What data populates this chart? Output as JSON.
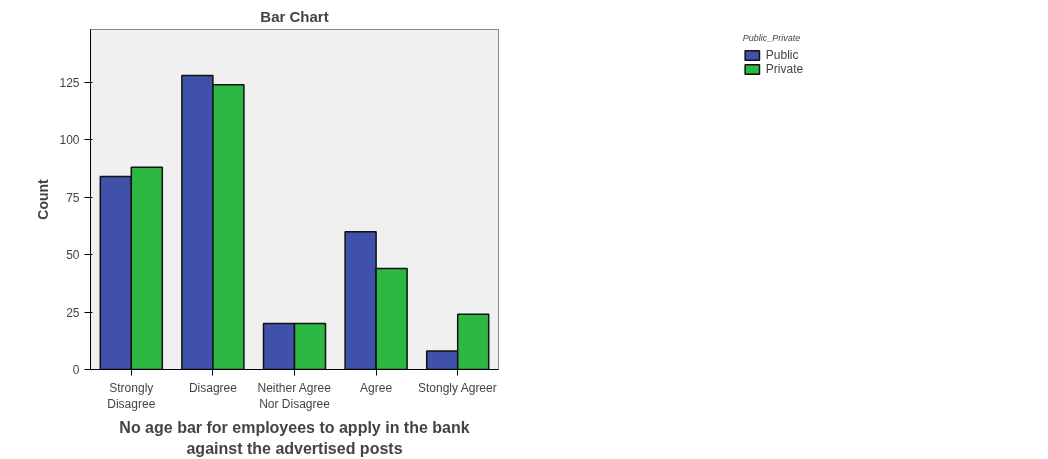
{
  "chart_data": {
    "type": "bar",
    "title": "Bar Chart",
    "xlabel": "No age bar for employees to apply in the bank\nagainst the advertised posts",
    "ylabel": "Count",
    "legend_title": "Public_Private",
    "categories": [
      "Strongly\nDisagree",
      "Disagree",
      "Neither Agree\nNor Disagree",
      "Agree",
      "Stongly Agreer"
    ],
    "series": [
      {
        "name": "Public",
        "color": "#3f51a8",
        "values": [
          84,
          128,
          20,
          60,
          8
        ]
      },
      {
        "name": "Private",
        "color": "#2db843",
        "values": [
          88,
          124,
          20,
          44,
          24
        ]
      }
    ],
    "ylim": [
      0,
      148
    ],
    "yticks": [
      0,
      25,
      50,
      75,
      100,
      125
    ],
    "grid": false,
    "legend": "top right"
  }
}
